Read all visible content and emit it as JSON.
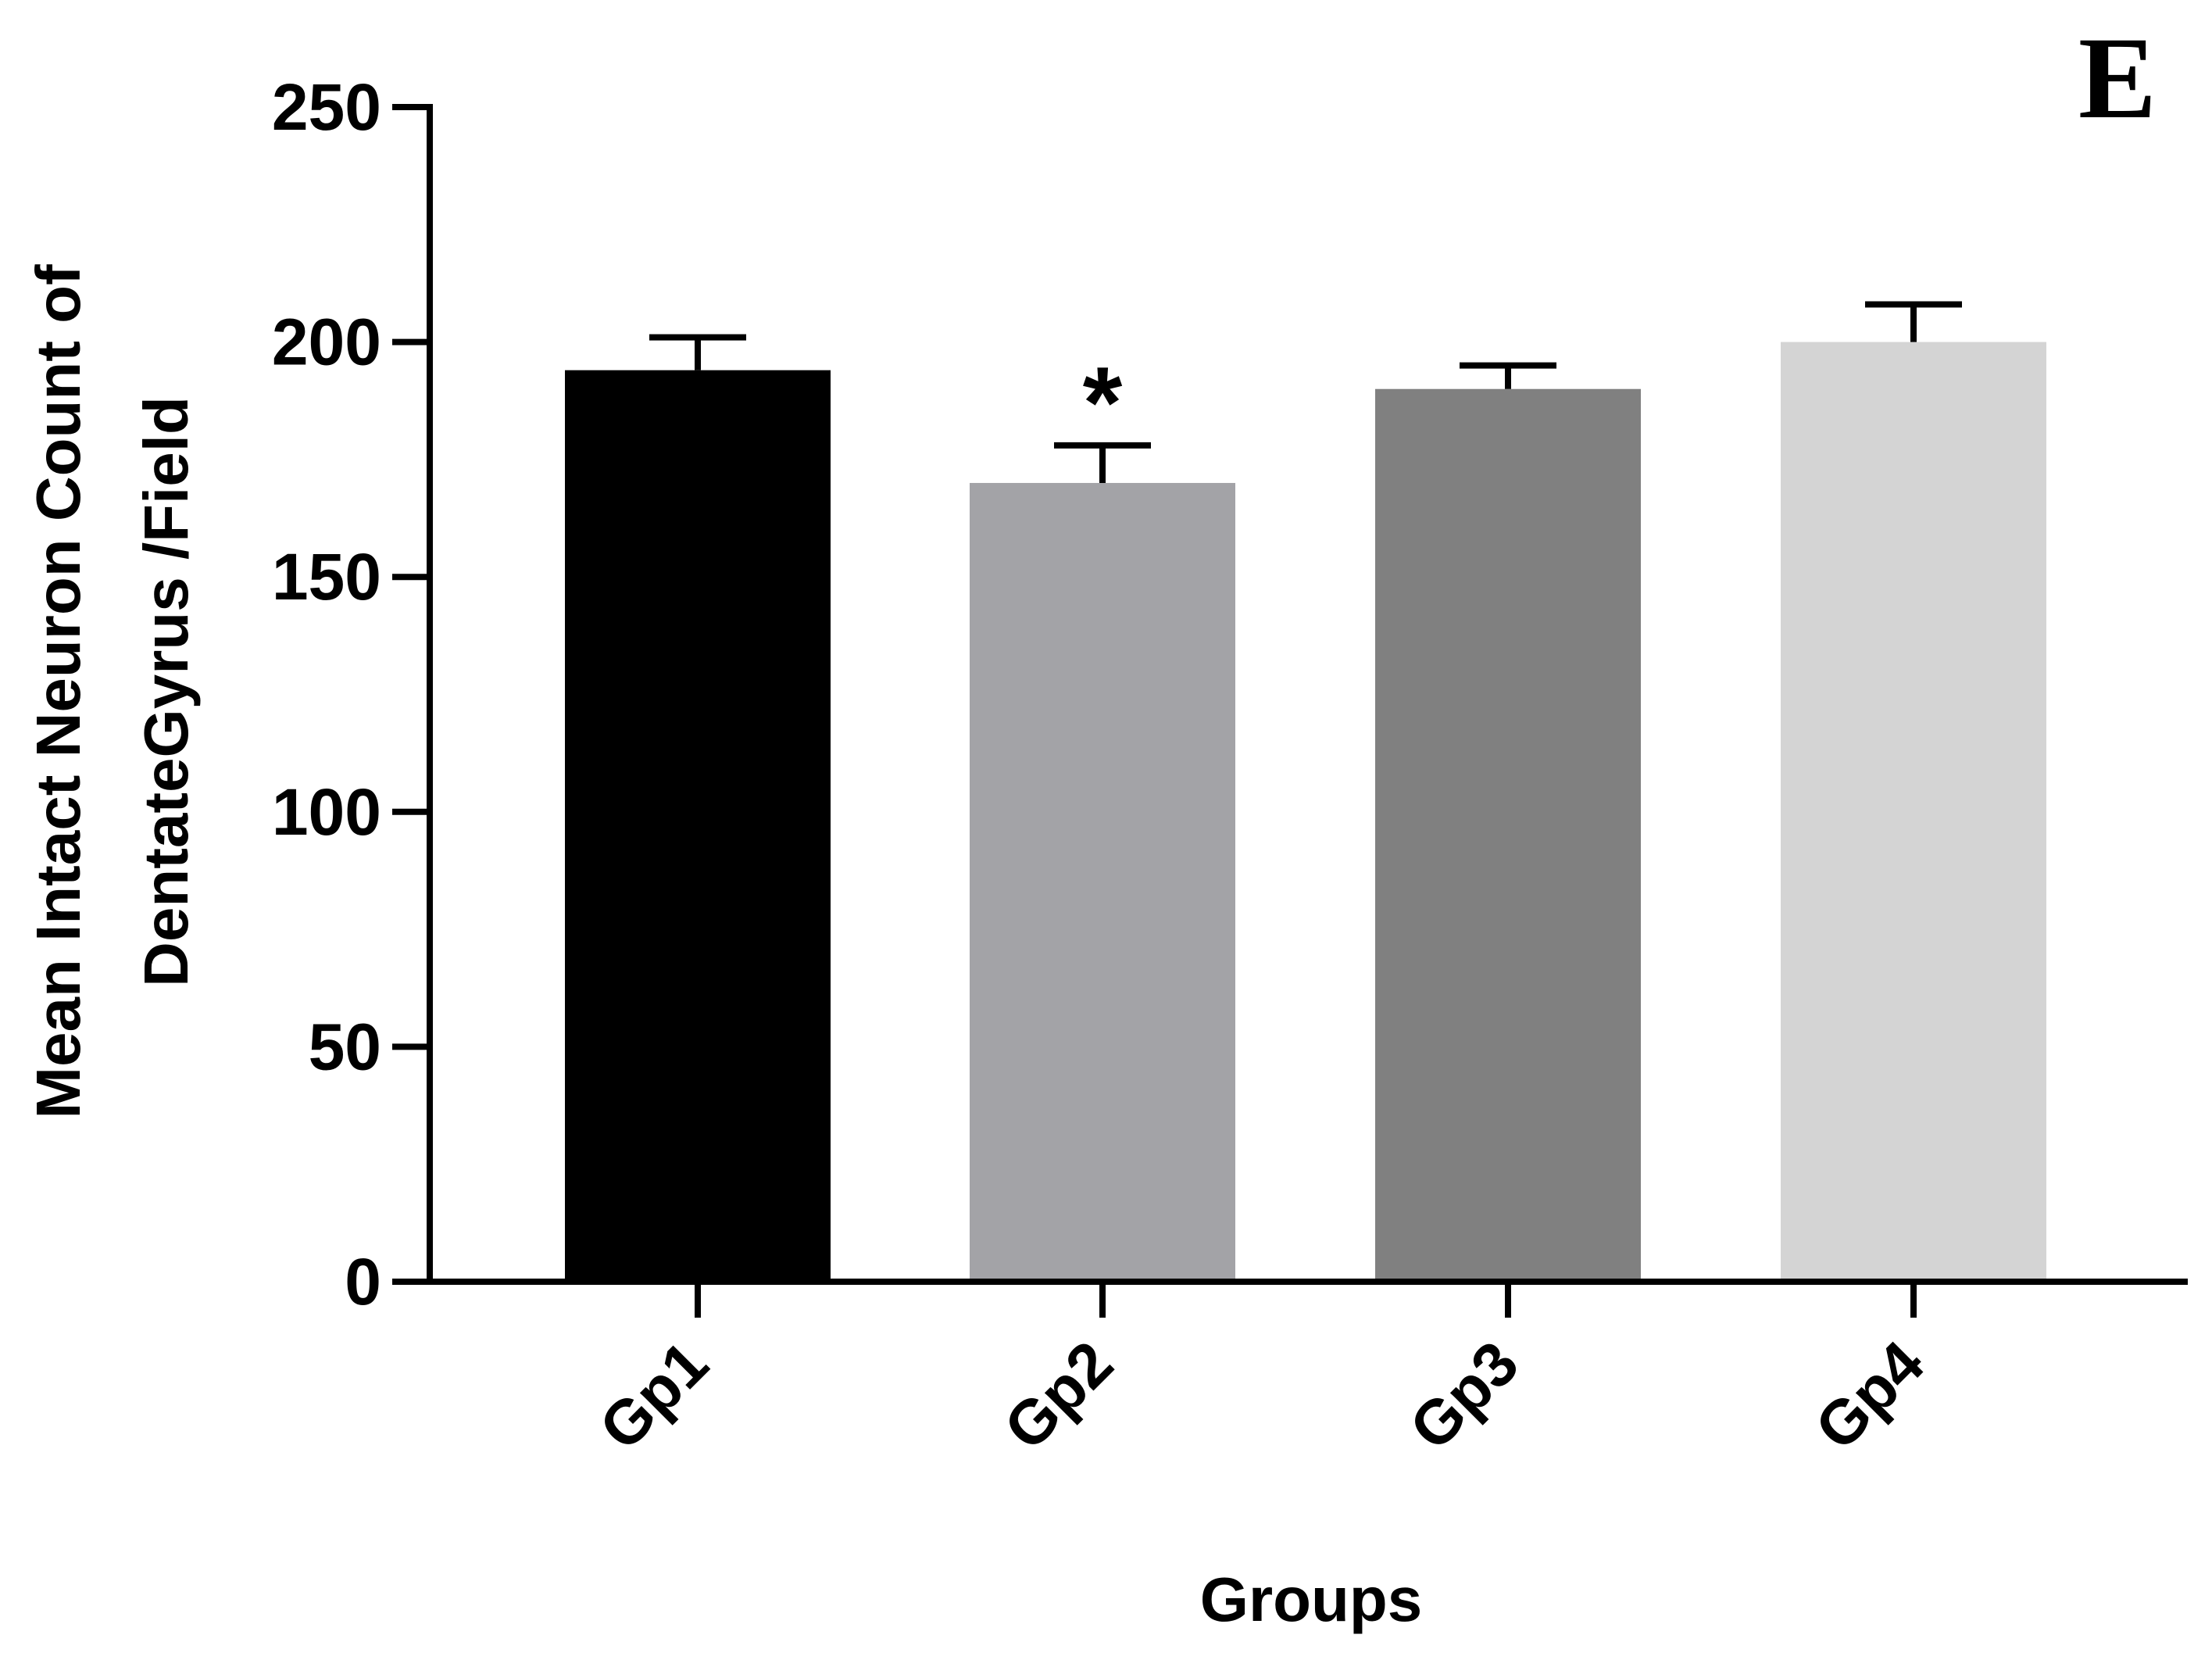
{
  "panel_label": "E",
  "chart_data": {
    "type": "bar",
    "categories": [
      "Gp1",
      "Gp2",
      "Gp3",
      "Gp4"
    ],
    "values": [
      194,
      170,
      190,
      200
    ],
    "error_upper": [
      201,
      178,
      195,
      208
    ],
    "colors": [
      "#000000",
      "#a3a3a7",
      "#808080",
      "#d4d4d4"
    ],
    "annotations": [
      "",
      "*",
      "",
      ""
    ],
    "xlabel": "Groups",
    "ylabel_line1": "Mean Intact Neuron Count of",
    "ylabel_line2": "DentateGyrus /Field",
    "ylim": [
      0,
      250
    ],
    "yticks": [
      0,
      50,
      100,
      150,
      200,
      250
    ],
    "grid": false,
    "legend": "none"
  }
}
